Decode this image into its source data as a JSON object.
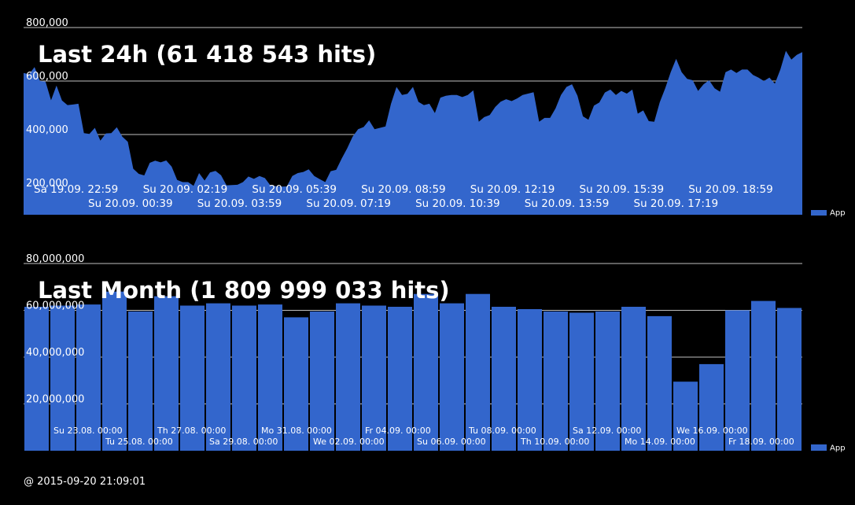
{
  "footer": {
    "timestamp": "@ 2015-09-20 21:09:01"
  },
  "colors": {
    "series": "#3366cc",
    "background": "#000000",
    "grid": "#ffffff",
    "text": "#ffffff"
  },
  "chart_data": [
    {
      "type": "area",
      "title": "Last 24h (61 418 543 hits)",
      "ylim": [
        100000,
        800000
      ],
      "yticks": [
        200000,
        400000,
        600000,
        800000
      ],
      "ytick_labels": [
        "200,000",
        "400,000",
        "600,000",
        "800,000"
      ],
      "grid": true,
      "legend_position": "right-bottom",
      "series": [
        {
          "name": "App",
          "values": [
            630000,
            625000,
            652000,
            600000,
            598000,
            528000,
            583000,
            527000,
            510000,
            512000,
            515000,
            405000,
            402000,
            425000,
            377000,
            404000,
            405000,
            427000,
            392000,
            373000,
            272000,
            253000,
            247000,
            294000,
            302000,
            296000,
            303000,
            280000,
            230000,
            222000,
            222000,
            208000,
            256000,
            228000,
            258000,
            264000,
            248000,
            210000,
            211000,
            212000,
            222000,
            243000,
            234000,
            245000,
            237000,
            210000,
            207000,
            205000,
            206000,
            245000,
            256000,
            260000,
            270000,
            245000,
            233000,
            222000,
            263000,
            268000,
            310000,
            348000,
            392000,
            420000,
            428000,
            453000,
            420000,
            425000,
            430000,
            515000,
            578000,
            548000,
            552000,
            578000,
            522000,
            510000,
            515000,
            480000,
            538000,
            545000,
            548000,
            548000,
            540000,
            548000,
            565000,
            448000,
            465000,
            473000,
            503000,
            523000,
            532000,
            525000,
            535000,
            548000,
            553000,
            558000,
            448000,
            462000,
            462000,
            498000,
            548000,
            578000,
            588000,
            545000,
            468000,
            455000,
            508000,
            520000,
            557000,
            568000,
            548000,
            563000,
            553000,
            568000,
            478000,
            490000,
            450000,
            448000,
            520000,
            573000,
            633000,
            683000,
            633000,
            608000,
            603000,
            563000,
            588000,
            603000,
            573000,
            560000,
            633000,
            643000,
            630000,
            643000,
            643000,
            623000,
            613000,
            600000,
            613000,
            590000,
            643000,
            713000,
            680000,
            698000,
            708000
          ]
        }
      ],
      "x_labels_row1": [
        "Sa 19.09. 22:59",
        "Su 20.09. 02:19",
        "Su 20.09. 05:39",
        "Su 20.09. 08:59",
        "Su 20.09. 12:19",
        "Su 20.09. 15:39",
        "Su 20.09. 18:59"
      ],
      "x_labels_row2": [
        "Su 20.09. 00:39",
        "Su 20.09. 03:59",
        "Su 20.09. 07:19",
        "Su 20.09. 10:39",
        "Su 20.09. 13:59",
        "Su 20.09. 17:19"
      ]
    },
    {
      "type": "bar",
      "title": "Last Month (1 809 999 033 hits)",
      "ylim": [
        0,
        80000000
      ],
      "yticks": [
        20000000,
        40000000,
        60000000,
        80000000
      ],
      "ytick_labels": [
        "20,000,000",
        "40,000,000",
        "60,000,000",
        "80,000,000"
      ],
      "grid": true,
      "legend_position": "right-bottom",
      "series": [
        {
          "name": "App",
          "values": [
            61500000,
            62000000,
            62500000,
            68000000,
            59500000,
            66000000,
            62000000,
            63000000,
            62000000,
            62500000,
            57000000,
            59500000,
            63000000,
            62000000,
            61500000,
            67000000,
            63000000,
            67000000,
            61500000,
            60500000,
            59500000,
            59000000,
            59500000,
            61500000,
            57500000,
            29500000,
            37000000,
            60000000,
            64000000,
            61000000
          ]
        }
      ],
      "x_labels_row1": [
        "Su 23.08. 00:00",
        "Th 27.08. 00:00",
        "Mo 31.08. 00:00",
        "Fr 04.09. 00:00",
        "Tu 08.09. 00:00",
        "Sa 12.09. 00:00",
        "We 16.09. 00:00"
      ],
      "x_labels_row2": [
        "Tu 25.08. 00:00",
        "Sa 29.08. 00:00",
        "We 02.09. 00:00",
        "Su 06.09. 00:00",
        "Th 10.09. 00:00",
        "Mo 14.09. 00:00",
        "Fr 18.09. 00:00"
      ]
    }
  ]
}
